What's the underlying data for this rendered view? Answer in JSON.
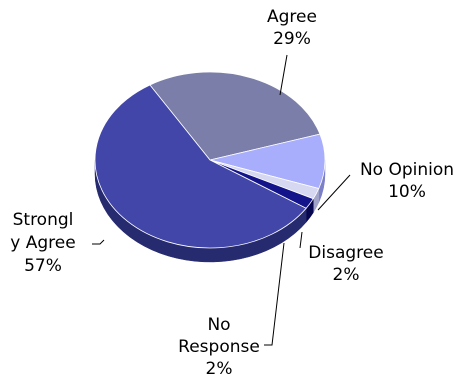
{
  "chart_data": {
    "type": "pie",
    "title": "",
    "three_d": true,
    "legend": "none",
    "slices": [
      {
        "label_lines": [
          "Agree"
        ],
        "value": 29,
        "value_label": "29%",
        "color": "#7a7ea8",
        "side_color": "#4f5380"
      },
      {
        "label_lines": [
          "No Opinion"
        ],
        "value": 10,
        "value_label": "10%",
        "color": "#a8aefc",
        "side_color": "#7b80c8"
      },
      {
        "label_lines": [
          "Disagree"
        ],
        "value": 2,
        "value_label": "2%",
        "color": "#d6d8f2",
        "side_color": "#a2a5c8"
      },
      {
        "label_lines": [
          "No",
          "Response"
        ],
        "value": 2,
        "value_label": "2%",
        "color": "#14148a",
        "side_color": "#07074f"
      },
      {
        "label_lines": [
          "Strongl",
          "y Agree"
        ],
        "value": 57,
        "value_label": "57%",
        "color": "#4146a8",
        "side_color": "#262a6e"
      }
    ]
  }
}
